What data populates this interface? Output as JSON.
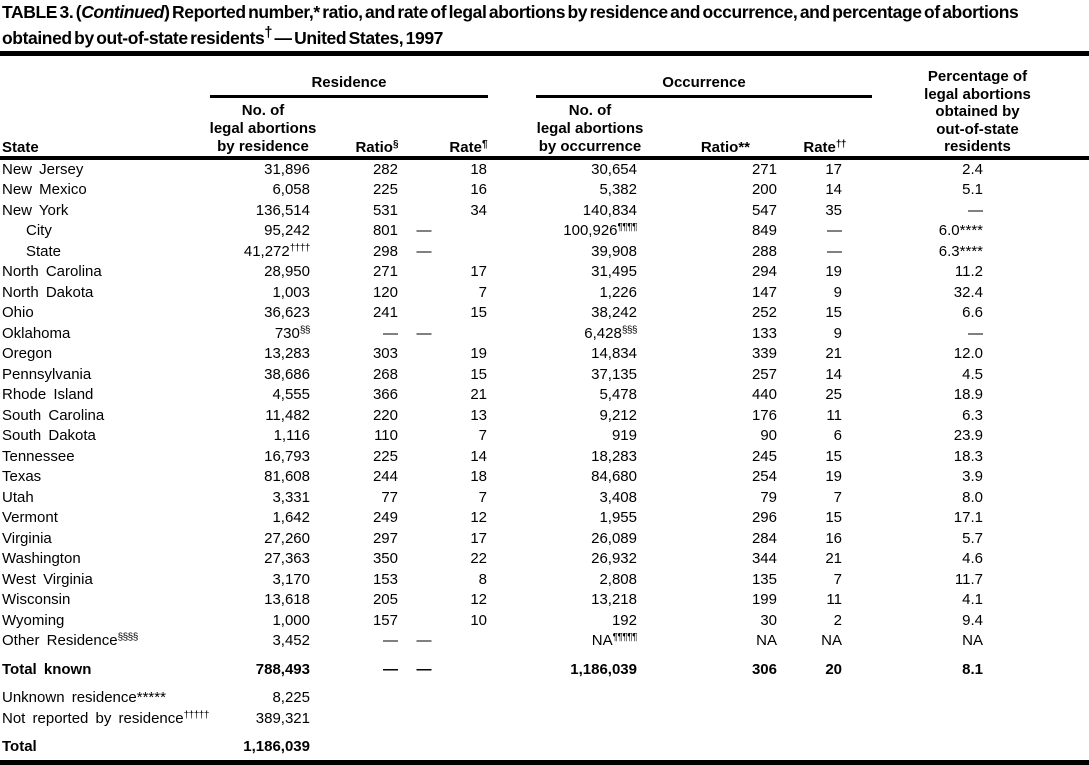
{
  "title": {
    "prefix": "TABLE 3. (",
    "continued": "Continued",
    "line1_rest": ") Reported number,* ratio, and rate of legal abortions by residence and occurrence, and percentage of abortions",
    "line2": "obtained by out-of-state residents^†^ — United States, 1997"
  },
  "table": {
    "groups": {
      "residence": "Residence",
      "occurrence": "Occurrence"
    },
    "col_headers": {
      "state": "State",
      "res_no": "No. of\nlegal abortions\nby residence",
      "res_ratio": "Ratio^§^",
      "res_rate": "Rate^¶^",
      "occ_no": "No. of\nlegal abortions\nby occurrence",
      "occ_ratio": "Ratio**",
      "occ_rate": "Rate^††^",
      "pct": "Percentage of\nlegal abortions\nobtained by\nout-of-state\nresidents"
    },
    "rows": [
      {
        "state": "New Jersey",
        "cells": [
          "31,896",
          "282",
          "18",
          "30,654",
          "271",
          "17",
          "2.4"
        ]
      },
      {
        "state": "New Mexico",
        "cells": [
          "6,058",
          "225",
          "16",
          "5,382",
          "200",
          "14",
          "5.1"
        ]
      },
      {
        "state": "New York",
        "cells": [
          "136,514",
          "531",
          "34",
          "140,834",
          "547",
          "35",
          "—"
        ]
      },
      {
        "state": "City",
        "indent": true,
        "cells": [
          "95,242",
          "801",
          "—",
          "100,926^¶¶¶¶^",
          "849",
          "—",
          "6.0****"
        ]
      },
      {
        "state": "State",
        "indent": true,
        "cells": [
          "41,272^††††^",
          "298",
          "—",
          "39,908",
          "288",
          "—",
          "6.3****"
        ]
      },
      {
        "state": "North Carolina",
        "cells": [
          "28,950",
          "271",
          "17",
          "31,495",
          "294",
          "19",
          "11.2"
        ]
      },
      {
        "state": "North Dakota",
        "cells": [
          "1,003",
          "120",
          "7",
          "1,226",
          "147",
          "9",
          "32.4"
        ]
      },
      {
        "state": "Ohio",
        "cells": [
          "36,623",
          "241",
          "15",
          "38,242",
          "252",
          "15",
          "6.6"
        ]
      },
      {
        "state": "Oklahoma",
        "cells": [
          "730^§§^",
          "—",
          "—",
          "6,428^§§§^",
          "133",
          "9",
          "—"
        ]
      },
      {
        "state": "Oregon",
        "cells": [
          "13,283",
          "303",
          "19",
          "14,834",
          "339",
          "21",
          "12.0"
        ]
      },
      {
        "state": "Pennsylvania",
        "cells": [
          "38,686",
          "268",
          "15",
          "37,135",
          "257",
          "14",
          "4.5"
        ]
      },
      {
        "state": "Rhode Island",
        "cells": [
          "4,555",
          "366",
          "21",
          "5,478",
          "440",
          "25",
          "18.9"
        ]
      },
      {
        "state": "South Carolina",
        "cells": [
          "11,482",
          "220",
          "13",
          "9,212",
          "176",
          "11",
          "6.3"
        ]
      },
      {
        "state": "South Dakota",
        "cells": [
          "1,116",
          "110",
          "7",
          "919",
          "90",
          "6",
          "23.9"
        ]
      },
      {
        "state": "Tennessee",
        "cells": [
          "16,793",
          "225",
          "14",
          "18,283",
          "245",
          "15",
          "18.3"
        ]
      },
      {
        "state": "Texas",
        "cells": [
          "81,608",
          "244",
          "18",
          "84,680",
          "254",
          "19",
          "3.9"
        ]
      },
      {
        "state": "Utah",
        "cells": [
          "3,331",
          "77",
          "7",
          "3,408",
          "79",
          "7",
          "8.0"
        ]
      },
      {
        "state": "Vermont",
        "cells": [
          "1,642",
          "249",
          "12",
          "1,955",
          "296",
          "15",
          "17.1"
        ]
      },
      {
        "state": "Virginia",
        "cells": [
          "27,260",
          "297",
          "17",
          "26,089",
          "284",
          "16",
          "5.7"
        ]
      },
      {
        "state": "Washington",
        "cells": [
          "27,363",
          "350",
          "22",
          "26,932",
          "344",
          "21",
          "4.6"
        ]
      },
      {
        "state": "West Virginia",
        "cells": [
          "3,170",
          "153",
          "8",
          "2,808",
          "135",
          "7",
          "11.7"
        ]
      },
      {
        "state": "Wisconsin",
        "cells": [
          "13,618",
          "205",
          "12",
          "13,218",
          "199",
          "11",
          "4.1"
        ]
      },
      {
        "state": "Wyoming",
        "cells": [
          "1,000",
          "157",
          "10",
          "192",
          "30",
          "2",
          "9.4"
        ]
      },
      {
        "state": "Other Residence^§§§§^",
        "cells": [
          "3,452",
          "—",
          "—",
          "NA^¶¶¶¶¶^",
          "NA",
          "NA",
          "NA"
        ]
      },
      {
        "state": "Total known",
        "bold": true,
        "gap": true,
        "cells": [
          "788,493",
          "—",
          "—",
          "1,186,039",
          "306",
          "20",
          "8.1"
        ]
      },
      {
        "state": "Unknown residence*****",
        "gap": true,
        "cells": [
          "8,225",
          "",
          "",
          "",
          "",
          "",
          ""
        ]
      },
      {
        "state": "Not reported by residence^†††††^",
        "cells": [
          "389,321",
          "",
          "",
          "",
          "",
          "",
          ""
        ]
      },
      {
        "state": "Total",
        "bold": true,
        "gap": true,
        "cells": [
          "1,186,039",
          "",
          "",
          "",
          "",
          "",
          ""
        ]
      }
    ]
  }
}
